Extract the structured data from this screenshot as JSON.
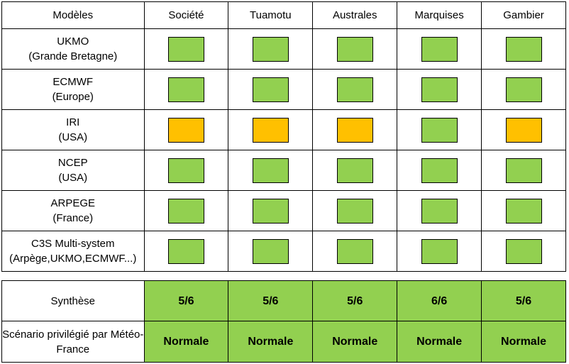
{
  "colors": {
    "favorable": "#92d050",
    "warning": "#ffc000",
    "border": "#000000"
  },
  "header": {
    "models_label": "Modèles",
    "regions": [
      "Société",
      "Tuamotu",
      "Australes",
      "Marquises",
      "Gambier"
    ]
  },
  "models": [
    {
      "name": "UKMO",
      "sub": "(Grande Bretagne)",
      "status": [
        "green",
        "green",
        "green",
        "green",
        "green"
      ]
    },
    {
      "name": "ECMWF",
      "sub": "(Europe)",
      "status": [
        "green",
        "green",
        "green",
        "green",
        "green"
      ]
    },
    {
      "name": "IRI",
      "sub": "(USA)",
      "status": [
        "orange",
        "orange",
        "orange",
        "green",
        "orange"
      ]
    },
    {
      "name": "NCEP",
      "sub": "(USA)",
      "status": [
        "green",
        "green",
        "green",
        "green",
        "green"
      ]
    },
    {
      "name": "ARPEGE",
      "sub": "(France)",
      "status": [
        "green",
        "green",
        "green",
        "green",
        "green"
      ]
    },
    {
      "name": "C3S Multi-system",
      "sub": "(Arpège,UKMO,ECMWF...)",
      "status": [
        "green",
        "green",
        "green",
        "green",
        "green"
      ]
    }
  ],
  "summary": {
    "synthese_label": "Synthèse",
    "synthese_values": [
      "5/6",
      "5/6",
      "5/6",
      "6/6",
      "5/6"
    ],
    "scenario_label": "Scénario privilégié par Météo-France",
    "scenario_values": [
      "Normale",
      "Normale",
      "Normale",
      "Normale",
      "Normale"
    ]
  }
}
